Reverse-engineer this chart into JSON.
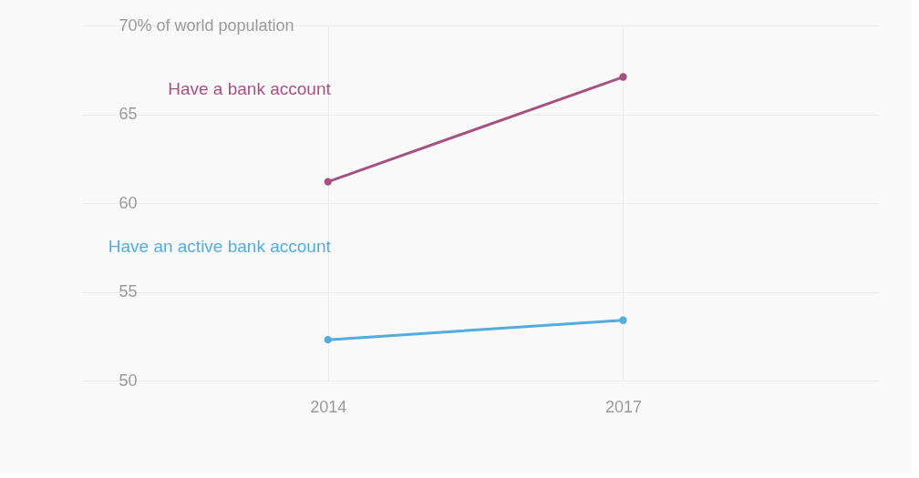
{
  "chart_data": {
    "type": "line",
    "x": [
      2014,
      2017
    ],
    "series": [
      {
        "name": "Have a bank account",
        "color": "#a4527f",
        "values": [
          61.2,
          67.1
        ]
      },
      {
        "name": "Have an active bank account",
        "color": "#53acdc",
        "values": [
          52.3,
          53.4
        ]
      }
    ],
    "xlim": [
      2011.5,
      2019.6
    ],
    "xticks": [
      2014,
      2017
    ],
    "ylim": [
      50,
      70
    ],
    "yticks": [
      50,
      55,
      60,
      65,
      {
        "value": 70,
        "label": "70% of world population"
      }
    ],
    "grid": true,
    "marker": "circle",
    "line_style": "solid"
  }
}
